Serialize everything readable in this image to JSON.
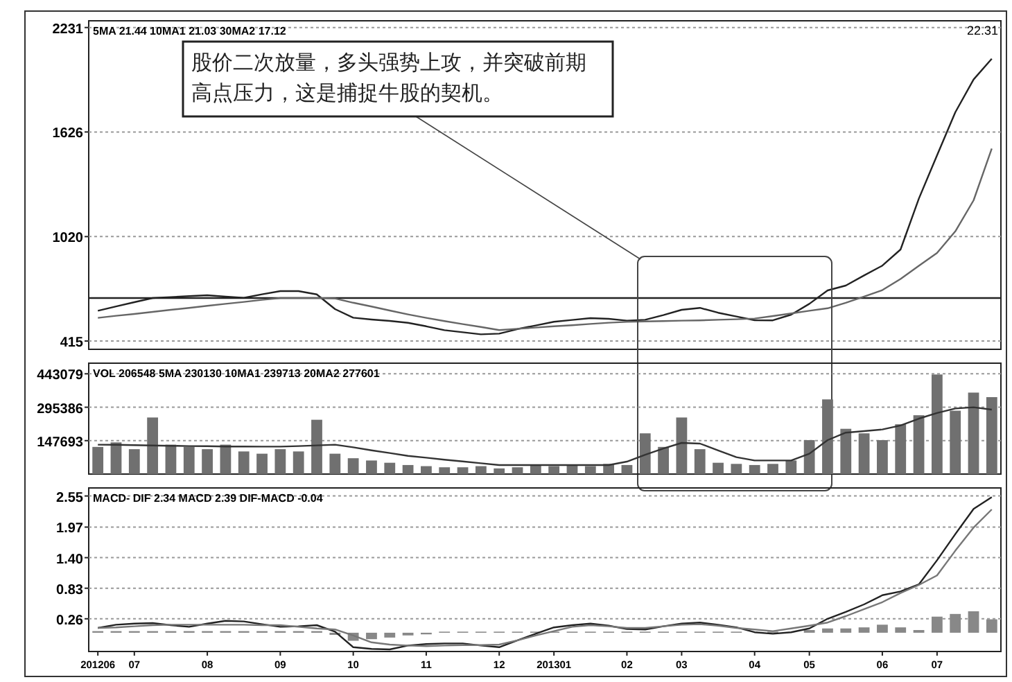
{
  "chart_data": [
    {
      "type": "line",
      "ylim": [
        367,
        2270
      ],
      "yticks": [
        2231,
        1626,
        1020,
        415
      ],
      "grid": "y",
      "tick_labels": "y",
      "categories": [
        "201206",
        null,
        "07",
        null,
        null,
        null,
        "08",
        null,
        null,
        null,
        "09",
        null,
        null,
        null,
        "10",
        null,
        null,
        null,
        "11",
        null,
        null,
        null,
        "12",
        null,
        null,
        "201301",
        null,
        null,
        null,
        "02",
        null,
        null,
        "03",
        null,
        null,
        null,
        "04",
        null,
        null,
        "05",
        null,
        null,
        null,
        "06",
        null,
        null,
        "07",
        null,
        null,
        null
      ],
      "series": [
        {
          "color": "#222222",
          "values": [
            590,
            615,
            640,
            664,
            670,
            675,
            680,
            672,
            665,
            686,
            704,
            704,
            685,
            600,
            550,
            540,
            532,
            520,
            500,
            478,
            466,
            454,
            458,
            484,
            505,
            527,
            537,
            548,
            544,
            533,
            538,
            565,
            596,
            607,
            579,
            557,
            536,
            535,
            568,
            630,
            708,
            736,
            795,
            852,
            945,
            1240,
            1490,
            1740,
            1930,
            2050
          ]
        },
        {
          "color": "#666666",
          "values": [
            549,
            561,
            572,
            584,
            596,
            607,
            619,
            630,
            642,
            654,
            664,
            664,
            664,
            662,
            637,
            615,
            592,
            569,
            549,
            531,
            513,
            496,
            479,
            486,
            493,
            500,
            507,
            514,
            521,
            526,
            528,
            531,
            533,
            535,
            538,
            541,
            545,
            560,
            575,
            590,
            605,
            637,
            673,
            710,
            775,
            850,
            925,
            1050,
            1230,
            1530
          ]
        }
      ],
      "ref_lines": [
        {
          "axis": "y",
          "value": 664,
          "color": "#222222"
        }
      ],
      "annotations": [
        "5MA 21.44  10MA1 21.03  30MA2 17.12",
        "股价二次放量，多头强势上攻，并突破前期高点压力，这是捕捉牛股的契机。",
        "22.31"
      ]
    },
    {
      "type": "bar",
      "ylim": [
        0,
        490000
      ],
      "yticks": [
        443079,
        295386,
        147693
      ],
      "grid": "y",
      "tick_labels": "y",
      "categories": [
        "201206",
        null,
        "07",
        null,
        null,
        null,
        "08",
        null,
        null,
        null,
        "09",
        null,
        null,
        null,
        "10",
        null,
        null,
        null,
        "11",
        null,
        null,
        null,
        "12",
        null,
        null,
        "201301",
        null,
        null,
        null,
        "02",
        null,
        null,
        "03",
        null,
        null,
        null,
        "04",
        null,
        null,
        "05",
        null,
        null,
        null,
        "06",
        null,
        null,
        "07",
        null,
        null,
        null
      ],
      "series": [
        {
          "color": "#707070",
          "values": [
            120000,
            140000,
            110000,
            250000,
            130000,
            120000,
            110000,
            130000,
            100000,
            90000,
            110000,
            100000,
            240000,
            90000,
            70000,
            60000,
            50000,
            40000,
            35000,
            30000,
            30000,
            35000,
            25000,
            30000,
            40000,
            35000,
            40000,
            35000,
            45000,
            40000,
            180000,
            120000,
            250000,
            110000,
            50000,
            45000,
            40000,
            45000,
            60000,
            150000,
            330000,
            200000,
            180000,
            150000,
            220000,
            260000,
            440000,
            280000,
            360000,
            340000
          ]
        },
        {
          "type": "line",
          "color": "#333333",
          "values": [
            130000,
            129000,
            128000,
            126000,
            125000,
            124000,
            123000,
            122000,
            122000,
            121000,
            121000,
            124000,
            127000,
            130000,
            118000,
            105000,
            93000,
            80000,
            72000,
            64000,
            56000,
            48000,
            40000,
            40000,
            40000,
            40000,
            40000,
            40000,
            40000,
            55000,
            85000,
            113000,
            138000,
            135000,
            105000,
            75000,
            60000,
            60000,
            60000,
            90000,
            150000,
            183000,
            190000,
            197000,
            215000,
            245000,
            270000,
            290000,
            295000,
            285000
          ]
        }
      ],
      "annotations": [
        "VOL 206548  5MA 230130  10MA1 239713  20MA2 277601"
      ]
    },
    {
      "type": "line",
      "ylim": [
        -0.35,
        2.7
      ],
      "yticks": [
        2.55,
        1.97,
        {
          "value": 1.4,
          "label": "1.40"
        },
        0.83,
        0.26
      ],
      "grid": "y",
      "categories": [
        "201206",
        null,
        "07",
        null,
        null,
        null,
        "08",
        null,
        null,
        null,
        "09",
        null,
        null,
        null,
        "10",
        null,
        null,
        null,
        "11",
        null,
        null,
        null,
        "12",
        null,
        null,
        "201301",
        null,
        null,
        null,
        "02",
        null,
        null,
        "03",
        null,
        null,
        null,
        "04",
        null,
        null,
        "05",
        null,
        null,
        null,
        "06",
        null,
        null,
        "07",
        null,
        null,
        null
      ],
      "series": [
        {
          "type": "bar",
          "color": "#888888",
          "values": [
            0.03,
            0.03,
            0.03,
            0.03,
            0.03,
            0.03,
            0.03,
            0.03,
            0.03,
            0.03,
            0.03,
            0.03,
            0.03,
            -0.04,
            -0.15,
            -0.12,
            -0.09,
            -0.05,
            -0.03,
            0.02,
            0.02,
            0.02,
            0.02,
            0.02,
            0.02,
            0.02,
            0.02,
            0.02,
            0.02,
            0.02,
            0.02,
            0.02,
            0.02,
            0.02,
            0.02,
            0.02,
            null,
            0.02,
            null,
            0.05,
            0.08,
            0.08,
            0.1,
            0.15,
            0.1,
            0.05,
            0.3,
            0.35,
            0.4,
            0.25
          ]
        },
        {
          "color": "#222222",
          "values": [
            0.09,
            0.15,
            0.17,
            0.18,
            0.14,
            0.11,
            0.17,
            0.22,
            0.21,
            0.16,
            0.11,
            0.12,
            0.14,
            0.02,
            -0.27,
            -0.3,
            -0.31,
            -0.24,
            -0.21,
            -0.2,
            -0.2,
            -0.24,
            -0.27,
            -0.14,
            -0.02,
            0.1,
            0.14,
            0.17,
            0.13,
            0.07,
            0.06,
            0.12,
            0.17,
            0.19,
            0.15,
            0.1,
            0.01,
            -0.02,
            0.01,
            0.08,
            0.26,
            0.39,
            0.53,
            0.7,
            0.77,
            0.9,
            1.35,
            1.84,
            2.31,
            2.53
          ]
        },
        {
          "color": "#777777",
          "values": [
            0.09,
            0.1,
            0.12,
            0.14,
            0.15,
            0.15,
            0.15,
            0.15,
            0.15,
            0.14,
            0.14,
            0.11,
            0.08,
            0.06,
            -0.05,
            -0.18,
            -0.22,
            -0.24,
            -0.25,
            -0.24,
            -0.23,
            -0.23,
            -0.22,
            -0.14,
            -0.05,
            0.03,
            0.11,
            0.14,
            0.12,
            0.09,
            0.09,
            0.12,
            0.15,
            0.16,
            0.13,
            0.09,
            0.06,
            0.03,
            0.08,
            0.13,
            0.19,
            0.31,
            0.44,
            0.57,
            0.74,
            0.89,
            1.07,
            1.53,
            1.96,
            2.3
          ]
        }
      ],
      "annotations": [
        "MACD- DIF 2.34  MACD 2.39  DIF-MACD -0.04"
      ]
    }
  ]
}
